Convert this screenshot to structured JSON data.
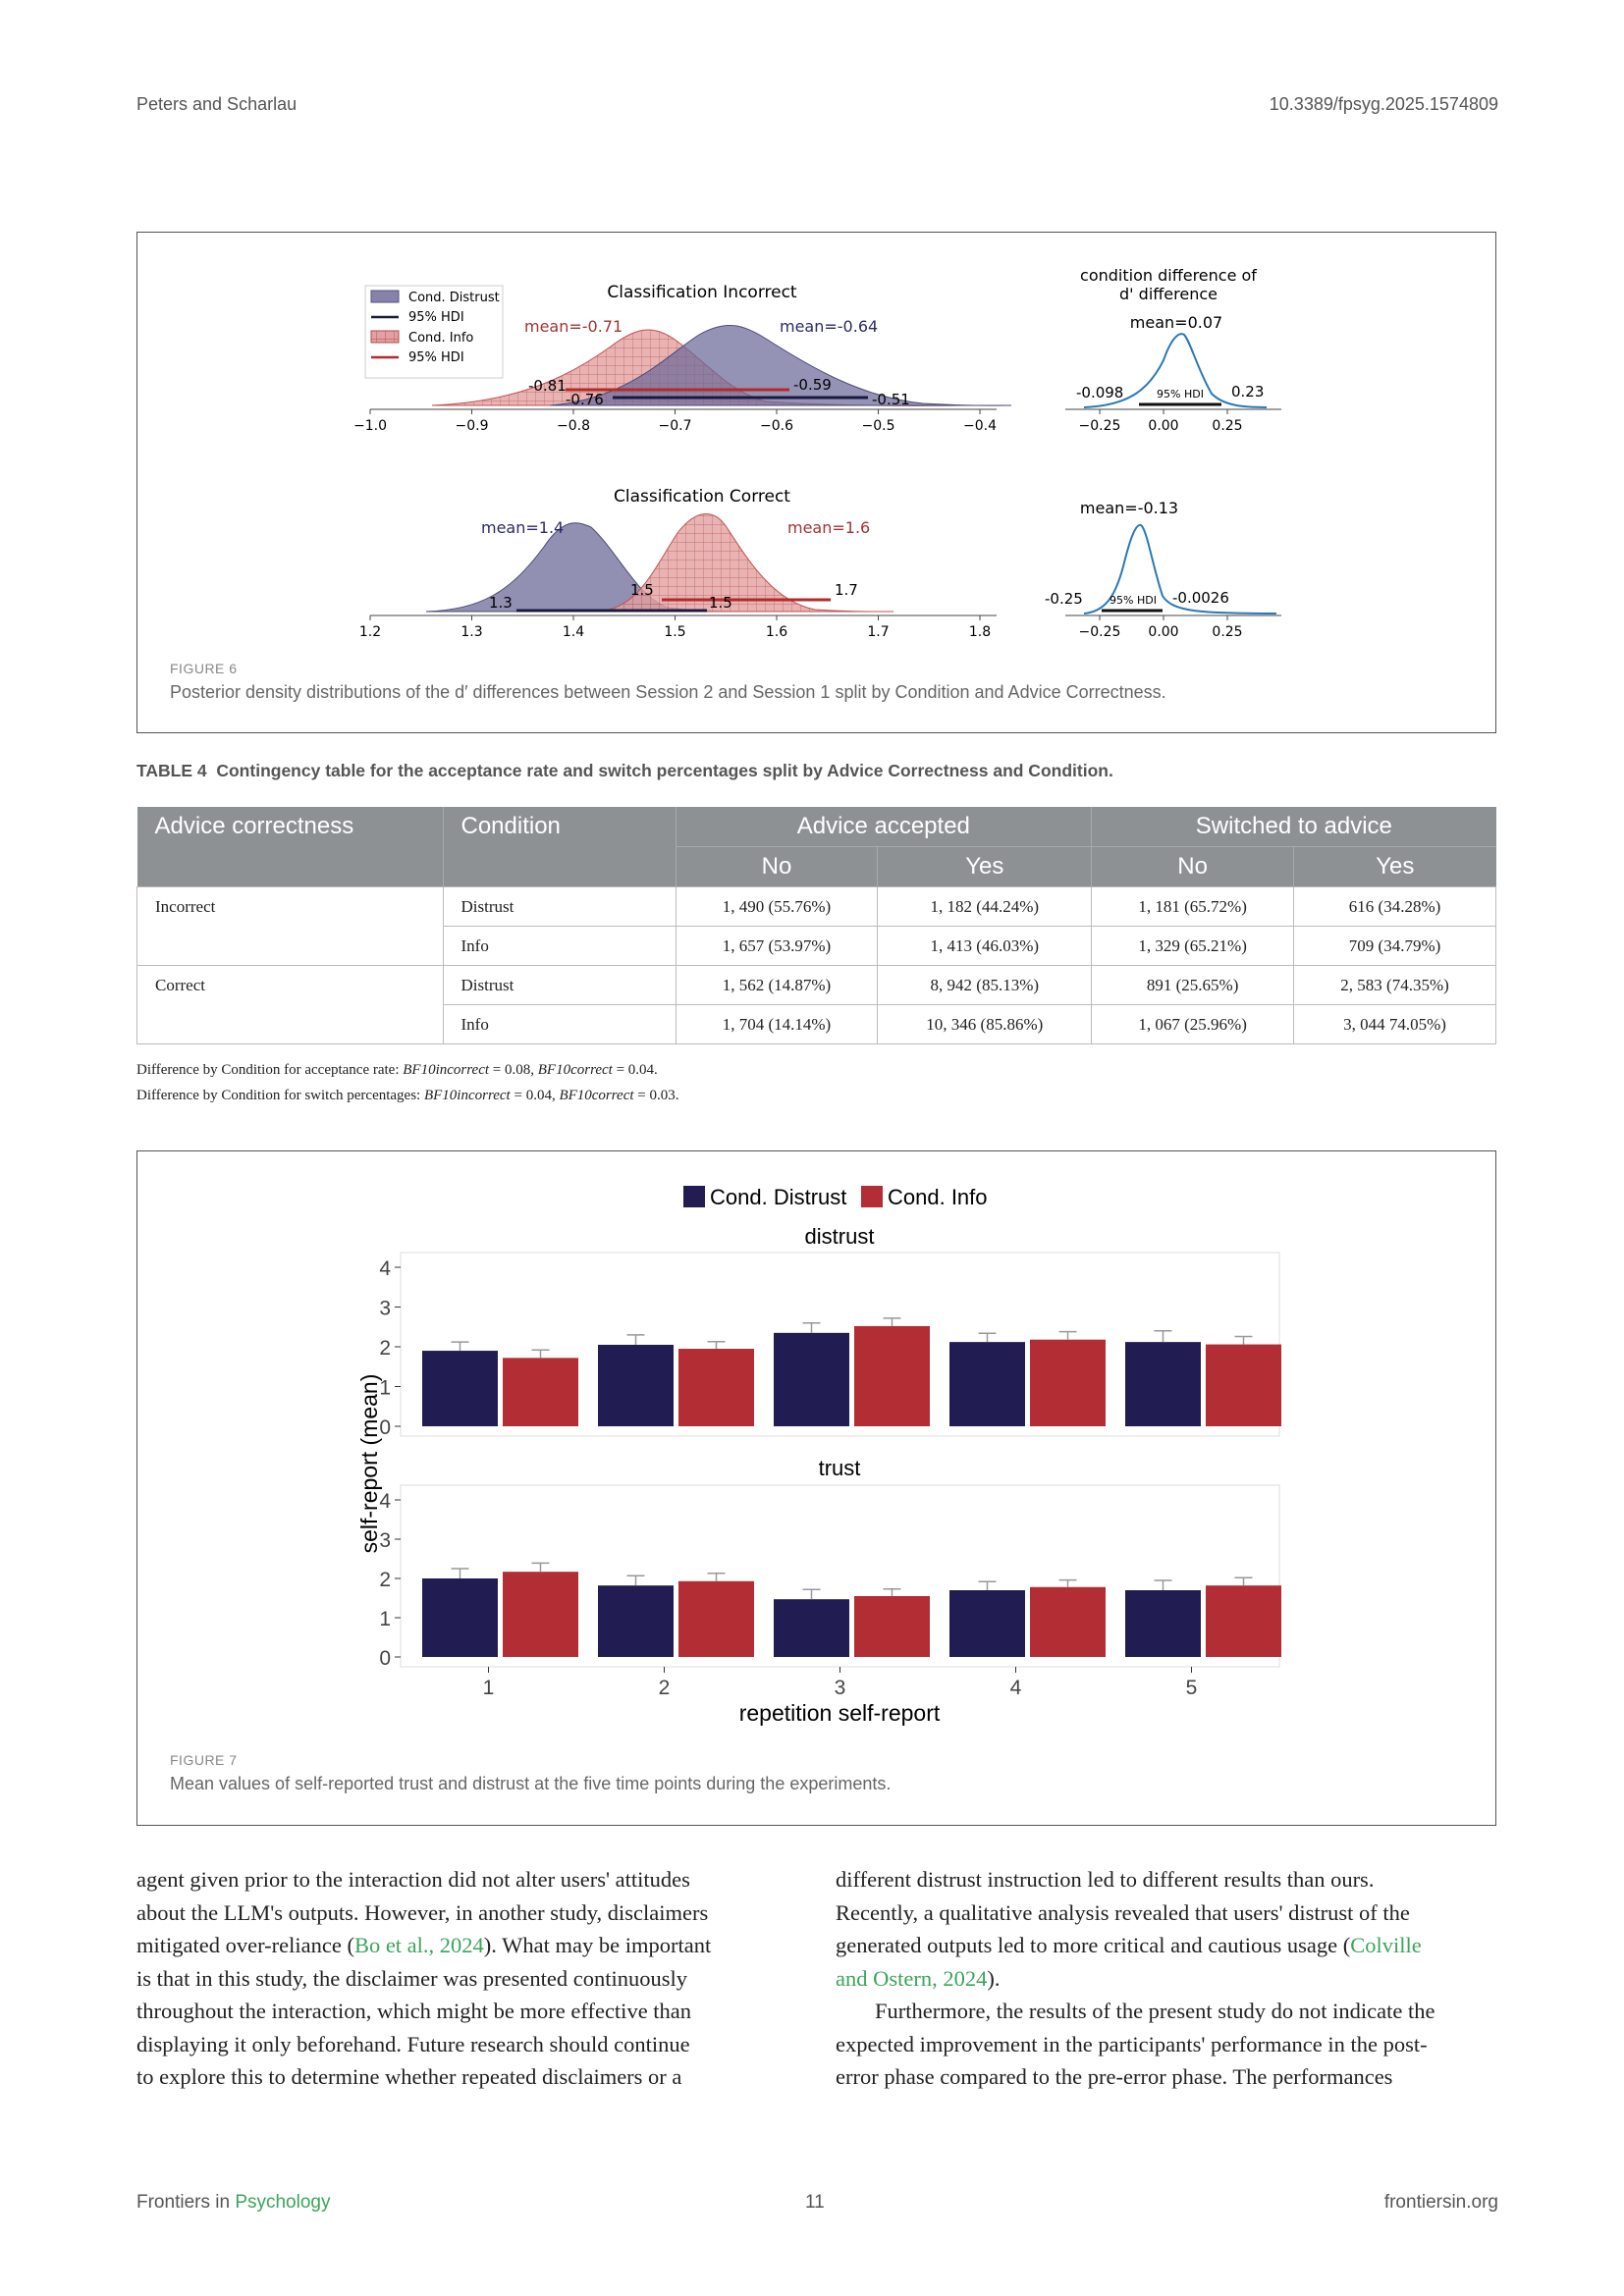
{
  "header": {
    "authors": "Peters and Scharlau",
    "doi": "10.3389/fpsyg.2025.1574809"
  },
  "figure6": {
    "label": "FIGURE 6",
    "caption": "Posterior density distributions of the d′ differences between Session 2 and Session 1 split by Condition and Advice Correctness.",
    "legend": [
      "Cond. Distrust",
      "95% HDI",
      "Cond. Info",
      "95% HDI"
    ],
    "incorrect": {
      "title": "Classification Incorrect",
      "mean_info": "mean=-0.71",
      "mean_distrust": "mean=-0.64",
      "info_hdi": [
        "-0.81",
        "-0.59"
      ],
      "distrust_hdi": [
        "-0.76",
        "-0.51"
      ],
      "ticks": [
        "−1.0",
        "−0.9",
        "−0.8",
        "−0.7",
        "−0.6",
        "−0.5",
        "−0.4"
      ]
    },
    "correct": {
      "title": "Classification Correct",
      "mean_distrust": "mean=1.4",
      "mean_info": "mean=1.6",
      "distrust_hdi": [
        "1.3",
        "1.5"
      ],
      "info_hdi": [
        "1.5",
        "1.7"
      ],
      "ticks": [
        "1.2",
        "1.3",
        "1.4",
        "1.5",
        "1.6",
        "1.7",
        "1.8"
      ]
    },
    "diff_title_1": "condition difference of",
    "diff_title_2": "d' difference",
    "diff_incorrect": {
      "mean": "mean=0.07",
      "low": "-0.098",
      "high": "0.23",
      "hdi": "95% HDI"
    },
    "diff_correct": {
      "mean": "mean=-0.13",
      "low": "-0.25",
      "high": "-0.0026",
      "hdi": "95% HDI"
    },
    "diff_ticks": [
      "−0.25",
      "0.00",
      "0.25"
    ]
  },
  "table4": {
    "caption_label": "TABLE 4",
    "caption": "Contingency table for the acceptance rate and switch percentages split by Advice Correctness and Condition.",
    "col_correctness": "Advice correctness",
    "col_condition": "Condition",
    "col_accepted": "Advice accepted",
    "col_switched": "Switched to advice",
    "no": "No",
    "yes": "Yes",
    "rows": [
      {
        "correctness": "Incorrect",
        "condition": "Distrust",
        "acc_no": "1, 490 (55.76%)",
        "acc_yes": "1, 182 (44.24%)",
        "sw_no": "1, 181 (65.72%)",
        "sw_yes": "616 (34.28%)"
      },
      {
        "correctness": "",
        "condition": "Info",
        "acc_no": "1, 657 (53.97%)",
        "acc_yes": "1, 413 (46.03%)",
        "sw_no": "1, 329 (65.21%)",
        "sw_yes": "709 (34.79%)"
      },
      {
        "correctness": "Correct",
        "condition": "Distrust",
        "acc_no": "1, 562 (14.87%)",
        "acc_yes": "8, 942 (85.13%)",
        "sw_no": "891 (25.65%)",
        "sw_yes": "2, 583 (74.35%)"
      },
      {
        "correctness": "",
        "condition": "Info",
        "acc_no": "1, 704 (14.14%)",
        "acc_yes": "10, 346 (85.86%)",
        "sw_no": "1, 067 (25.96%)",
        "sw_yes": "3, 044 74.05%)"
      }
    ],
    "note1_prefix": "Difference by Condition for acceptance rate: ",
    "note1_a": "= 0.08, ",
    "note1_b": "= 0.04.",
    "note2_prefix": "Difference by Condition for switch percentages: ",
    "note2_a": "= 0.04, ",
    "note2_b": "= 0.03.",
    "bf_incorrect": "BF10incorrect",
    "bf_correct": "BF10correct"
  },
  "figure7": {
    "label": "FIGURE 7",
    "caption": "Mean values of self-reported trust and distrust at the five time points during the experiments."
  },
  "chart_data": {
    "type": "bar",
    "legend": [
      "Cond. Distrust",
      "Cond. Info"
    ],
    "colors": [
      "#211d52",
      "#b32d34"
    ],
    "xlabel": "repetition self-report",
    "ylabel": "self-report (mean)",
    "categories": [
      "1",
      "2",
      "3",
      "4",
      "5"
    ],
    "ylim": [
      0,
      4
    ],
    "yticks": [
      "0",
      "1",
      "2",
      "3",
      "4"
    ],
    "panels": [
      {
        "title": "distrust",
        "series": [
          {
            "name": "Cond. Distrust",
            "values": [
              1.9,
              2.05,
              2.35,
              2.12,
              2.12
            ],
            "err": [
              0.22,
              0.25,
              0.25,
              0.22,
              0.28
            ]
          },
          {
            "name": "Cond. Info",
            "values": [
              1.72,
              1.95,
              2.52,
              2.18,
              2.06
            ],
            "err": [
              0.2,
              0.18,
              0.2,
              0.2,
              0.2
            ]
          }
        ]
      },
      {
        "title": "trust",
        "series": [
          {
            "name": "Cond. Distrust",
            "values": [
              2.0,
              1.82,
              1.47,
              1.7,
              1.7
            ],
            "err": [
              0.25,
              0.25,
              0.25,
              0.22,
              0.25
            ]
          },
          {
            "name": "Cond. Info",
            "values": [
              2.17,
              1.93,
              1.55,
              1.78,
              1.82
            ],
            "err": [
              0.22,
              0.2,
              0.18,
              0.18,
              0.2
            ]
          }
        ]
      }
    ]
  },
  "body": {
    "left": [
      "agent given prior to the interaction did not alter users' attitudes",
      "about the LLM's outputs. However, in another study, disclaimers",
      "mitigated over-reliance (",
      "Bo et al., 2024",
      "). What may be important",
      "is that in this study, the disclaimer was presented continuously",
      "throughout the interaction, which might be more effective than",
      "displaying it only beforehand. Future research should continue",
      "to explore this to determine whether repeated disclaimers or a"
    ],
    "right": [
      "different distrust instruction led to different results than ours.",
      "Recently, a qualitative analysis revealed that users' distrust of the",
      "generated outputs led to more critical and cautious usage (",
      "Colville",
      "and Ostern, 2024",
      ").",
      "Furthermore, the results of the present study do not indicate the",
      "expected improvement in the participants' performance in the post-",
      "error phase compared to the pre-error phase. The performances"
    ]
  },
  "footer": {
    "frontiers": "Frontiers in ",
    "journal": "Psychology",
    "page": "11",
    "site": "frontiersin.org"
  }
}
